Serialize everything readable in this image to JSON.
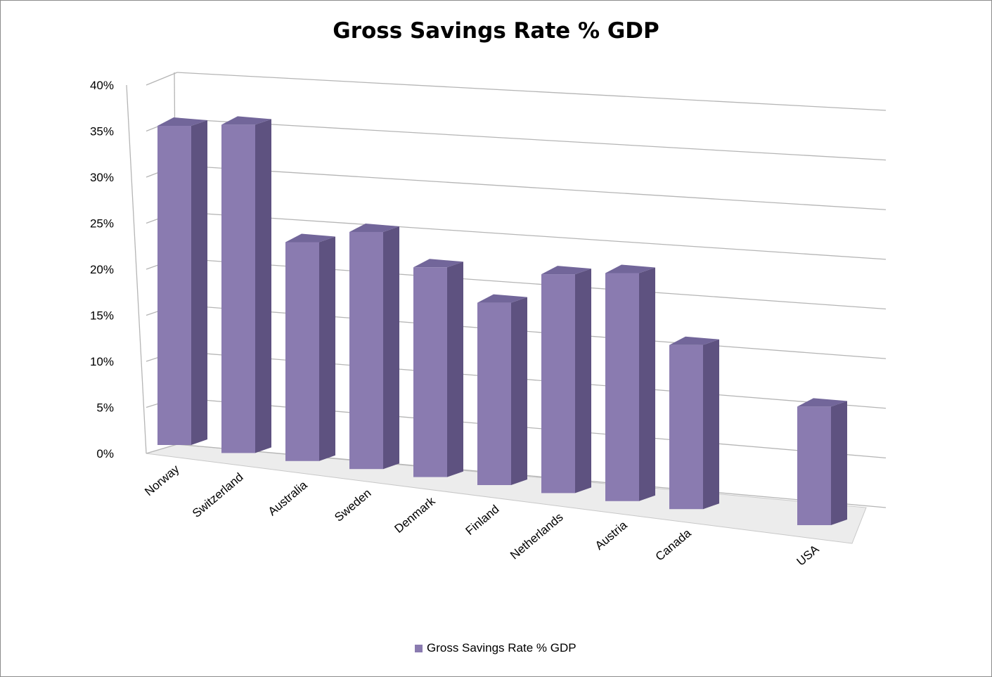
{
  "colors": {
    "bar_front": "#8a7bb0",
    "bar_side": "#5e5280",
    "bar_top": "#72669a",
    "gridline": "#b5b5b5",
    "floor": "#ececec"
  },
  "chart_data": {
    "type": "bar",
    "title": "Gross Savings Rate % GDP",
    "xlabel": "",
    "ylabel": "",
    "ylim": [
      0,
      40
    ],
    "y_ticks": [
      "0%",
      "5%",
      "10%",
      "15%",
      "20%",
      "25%",
      "30%",
      "35%",
      "40%"
    ],
    "grid": true,
    "legend_position": "bottom",
    "categories": [
      "Norway",
      "Switzerland",
      "Australia",
      "Sweden",
      "Denmark",
      "Finland",
      "Netherlands",
      "Austria",
      "Canada",
      "",
      "USA"
    ],
    "series": [
      {
        "name": "Gross Savings Rate % GDP",
        "values": [
          35,
          36,
          24,
          26,
          23,
          20,
          24,
          25,
          18,
          null,
          13
        ]
      }
    ]
  }
}
